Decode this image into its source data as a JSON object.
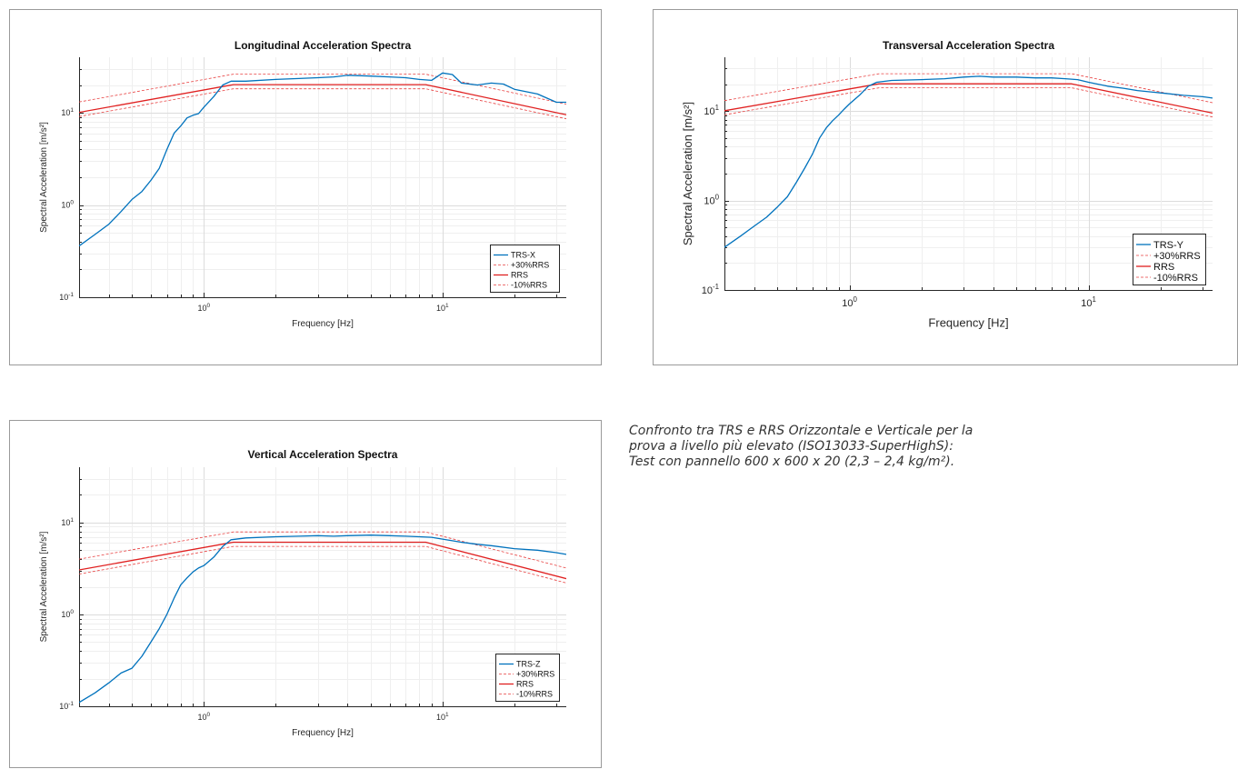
{
  "caption": {
    "line1": "Confronto tra TRS e RRS Orizzontale e Verticale per la",
    "line2": "prova a livello più elevato (ISO13033-SuperHighS):",
    "line3": "Test con pannello 600 x 600 x 20 (2,3 – 2,4 kg/m²)."
  },
  "colors": {
    "trs": "#0072BD",
    "rrs": "#E02020",
    "tol": "#E84040",
    "grid": "#dcdcdc",
    "axis": "#262626"
  },
  "chart_data": [
    {
      "type": "line",
      "title": "Longitudinal Acceleration Spectra",
      "xlabel": "Frequency [Hz]",
      "ylabel": "Spectral Acceleration [m/s²]",
      "xscale": "log",
      "yscale": "log",
      "xlim": [
        0.3,
        33
      ],
      "ylim": [
        0.1,
        40
      ],
      "xticks": [
        {
          "v": 1,
          "base": "10",
          "exp": "0"
        },
        {
          "v": 10,
          "base": "10",
          "exp": "1"
        }
      ],
      "yticks": [
        {
          "v": 0.1,
          "base": "10",
          "exp": "-1"
        },
        {
          "v": 1,
          "base": "10",
          "exp": "0"
        },
        {
          "v": 10,
          "base": "10",
          "exp": "1"
        }
      ],
      "grid": true,
      "legend_position": "bottom-right",
      "series": [
        {
          "name": "TRS-X",
          "style": "trs",
          "x": [
            0.3,
            0.35,
            0.4,
            0.45,
            0.5,
            0.55,
            0.6,
            0.65,
            0.7,
            0.75,
            0.8,
            0.85,
            0.9,
            0.95,
            1.0,
            1.1,
            1.2,
            1.3,
            1.5,
            2,
            2.5,
            3,
            3.5,
            4,
            5,
            6,
            7,
            8,
            9,
            10,
            11,
            12,
            14,
            16,
            18,
            20,
            25,
            30,
            33
          ],
          "y": [
            0.36,
            0.48,
            0.62,
            0.85,
            1.15,
            1.4,
            1.85,
            2.5,
            4,
            6,
            7.2,
            8.8,
            9.4,
            9.8,
            11.5,
            15,
            20,
            22,
            22,
            23,
            23.5,
            24,
            24.5,
            25.5,
            25,
            24.5,
            24,
            23,
            22.5,
            27,
            26,
            21,
            20,
            21,
            20.5,
            18,
            16,
            13,
            13
          ]
        },
        {
          "name": "+30%RRS",
          "style": "tol",
          "x": [
            0.3,
            1.33,
            8.5,
            33
          ],
          "y": [
            13.1,
            26.2,
            26.2,
            12.4
          ]
        },
        {
          "name": "RRS",
          "style": "rrs",
          "x": [
            0.3,
            1.33,
            8.5,
            33
          ],
          "y": [
            10.1,
            20.2,
            20.2,
            9.5
          ]
        },
        {
          "name": "-10%RRS",
          "style": "tol",
          "x": [
            0.3,
            1.33,
            8.5,
            33
          ],
          "y": [
            9.1,
            18.2,
            18.2,
            8.6
          ]
        }
      ]
    },
    {
      "type": "line",
      "title": "Transversal Acceleration Spectra",
      "xlabel": "Frequency [Hz]",
      "ylabel": "Spectral Acceleration [m/s²]",
      "xscale": "log",
      "yscale": "log",
      "xlim": [
        0.3,
        33
      ],
      "ylim": [
        0.1,
        40
      ],
      "xticks": [
        {
          "v": 1,
          "base": "10",
          "exp": "0"
        },
        {
          "v": 10,
          "base": "10",
          "exp": "1"
        }
      ],
      "yticks": [
        {
          "v": 0.1,
          "base": "10",
          "exp": "-1"
        },
        {
          "v": 1,
          "base": "10",
          "exp": "0"
        },
        {
          "v": 10,
          "base": "10",
          "exp": "1"
        }
      ],
      "grid": true,
      "legend_position": "bottom-right",
      "series": [
        {
          "name": "TRS-Y",
          "style": "trs",
          "x": [
            0.3,
            0.35,
            0.4,
            0.45,
            0.5,
            0.55,
            0.6,
            0.65,
            0.7,
            0.75,
            0.8,
            0.85,
            0.9,
            0.95,
            1.0,
            1.1,
            1.2,
            1.3,
            1.5,
            2,
            2.5,
            3,
            3.5,
            4,
            5,
            6,
            7,
            8,
            9,
            10,
            12,
            14,
            16,
            20,
            25,
            30,
            33
          ],
          "y": [
            0.3,
            0.4,
            0.52,
            0.65,
            0.85,
            1.1,
            1.6,
            2.3,
            3.3,
            5,
            6.5,
            7.8,
            9,
            10.5,
            12,
            15,
            19,
            21,
            22,
            22.5,
            23,
            24,
            24.5,
            24,
            24,
            23.5,
            23.5,
            23,
            22.5,
            21,
            19,
            18,
            17,
            16,
            15,
            14.5,
            14
          ]
        },
        {
          "name": "+30%RRS",
          "style": "tol",
          "x": [
            0.3,
            1.33,
            8.5,
            33
          ],
          "y": [
            13.1,
            26.2,
            26.2,
            12.4
          ]
        },
        {
          "name": "RRS",
          "style": "rrs",
          "x": [
            0.3,
            1.33,
            8.5,
            33
          ],
          "y": [
            10.1,
            20.2,
            20.2,
            9.5
          ]
        },
        {
          "name": "-10%RRS",
          "style": "tol",
          "x": [
            0.3,
            1.33,
            8.5,
            33
          ],
          "y": [
            9.1,
            18.2,
            18.2,
            8.6
          ]
        }
      ]
    },
    {
      "type": "line",
      "title": "Vertical Acceleration Spectra",
      "xlabel": "Frequency [Hz]",
      "ylabel": "Spectral Acceleration [m/s²]",
      "xscale": "log",
      "yscale": "log",
      "xlim": [
        0.3,
        33
      ],
      "ylim": [
        0.1,
        40
      ],
      "xticks": [
        {
          "v": 1,
          "base": "10",
          "exp": "0"
        },
        {
          "v": 10,
          "base": "10",
          "exp": "1"
        }
      ],
      "yticks": [
        {
          "v": 0.1,
          "base": "10",
          "exp": "-1"
        },
        {
          "v": 1,
          "base": "10",
          "exp": "0"
        },
        {
          "v": 10,
          "base": "10",
          "exp": "1"
        }
      ],
      "grid": true,
      "legend_position": "bottom-right",
      "series": [
        {
          "name": "TRS-Z",
          "style": "trs",
          "x": [
            0.3,
            0.35,
            0.4,
            0.45,
            0.5,
            0.55,
            0.6,
            0.65,
            0.7,
            0.75,
            0.8,
            0.85,
            0.9,
            0.95,
            1.0,
            1.1,
            1.2,
            1.3,
            1.5,
            2,
            2.5,
            3,
            3.5,
            4,
            5,
            6,
            7,
            8,
            9,
            10,
            12,
            14,
            16,
            20,
            25,
            30,
            33
          ],
          "y": [
            0.11,
            0.14,
            0.18,
            0.23,
            0.26,
            0.35,
            0.5,
            0.7,
            1.0,
            1.5,
            2.1,
            2.5,
            2.9,
            3.2,
            3.4,
            4.2,
            5.5,
            6.5,
            6.8,
            7,
            7.1,
            7.2,
            7.1,
            7.2,
            7.3,
            7.2,
            7.1,
            7,
            6.9,
            6.6,
            6.1,
            5.8,
            5.6,
            5.2,
            5,
            4.7,
            4.5
          ]
        },
        {
          "name": "+30%RRS",
          "style": "tol",
          "x": [
            0.3,
            1.33,
            8.5,
            33
          ],
          "y": [
            4.0,
            7.9,
            7.9,
            3.2
          ]
        },
        {
          "name": "RRS",
          "style": "rrs",
          "x": [
            0.3,
            1.33,
            8.5,
            33
          ],
          "y": [
            3.05,
            6.1,
            6.1,
            2.45
          ]
        },
        {
          "name": "-10%RRS",
          "style": "tol",
          "x": [
            0.3,
            1.33,
            8.5,
            33
          ],
          "y": [
            2.75,
            5.5,
            5.5,
            2.2
          ]
        }
      ]
    }
  ]
}
